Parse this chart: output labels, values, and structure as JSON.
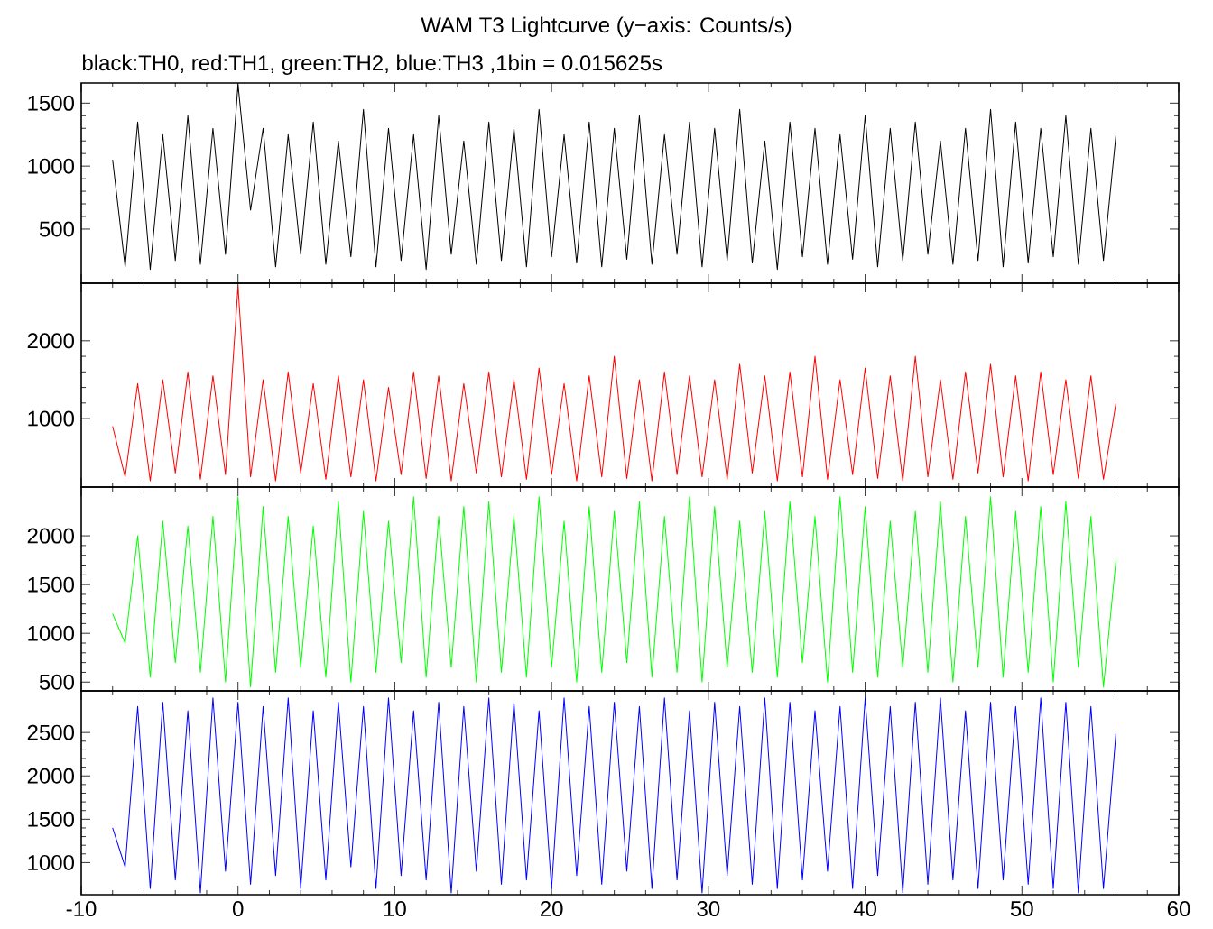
{
  "chart_data": [
    {
      "type": "line",
      "title": "WAM T3 Lightcurve (y−axis: Counts/s)",
      "subtitle": "black:TH0, red:TH1, green:TH2, blue:TH3 ,1bin = 0.015625s",
      "color": "#000000",
      "xlim": [
        -10,
        60
      ],
      "xticks": [
        -10,
        0,
        10,
        20,
        30,
        40,
        50,
        60
      ],
      "ylim": [
        70,
        1660
      ],
      "yticks": [
        500,
        1000,
        1500
      ],
      "tick_labels": "y",
      "x": [
        -8,
        -7.2,
        -6.4,
        -5.6,
        -4.8,
        -4,
        -3.2,
        -2.4,
        -1.6,
        -0.8,
        0,
        0.8,
        1.6,
        2.4,
        3.2,
        4,
        4.8,
        5.6,
        6.4,
        7.2,
        8,
        8.8,
        9.6,
        10.4,
        11.2,
        12,
        12.8,
        13.6,
        14.4,
        15.2,
        16,
        16.8,
        17.6,
        18.4,
        19.2,
        20,
        20.8,
        21.6,
        22.4,
        23.2,
        24,
        24.8,
        25.6,
        26.4,
        27.2,
        28,
        28.8,
        29.6,
        30.4,
        31.2,
        32,
        32.8,
        33.6,
        34.4,
        35.2,
        36,
        36.8,
        37.6,
        38.4,
        39.2,
        40,
        40.8,
        41.6,
        42.4,
        43.2,
        44,
        44.8,
        45.6,
        46.4,
        47.2,
        48,
        48.8,
        49.6,
        50.4,
        51.2,
        52,
        52.8,
        53.6,
        54.4,
        55.2,
        56
      ],
      "values": [
        1050,
        200,
        1350,
        180,
        1250,
        250,
        1400,
        220,
        1300,
        300,
        1650,
        650,
        1300,
        200,
        1250,
        300,
        1350,
        220,
        1200,
        280,
        1450,
        200,
        1300,
        250,
        1250,
        180,
        1400,
        300,
        1200,
        220,
        1350,
        250,
        1300,
        200,
        1450,
        280,
        1250,
        230,
        1350,
        200,
        1300,
        260,
        1400,
        220,
        1250,
        300,
        1350,
        200,
        1300,
        250,
        1450,
        230,
        1200,
        180,
        1350,
        280,
        1300,
        220,
        1250,
        260,
        1400,
        200,
        1300,
        250,
        1350,
        300,
        1200,
        220,
        1300,
        250,
        1450,
        200,
        1350,
        230,
        1300,
        280,
        1400,
        220,
        1300,
        250,
        1250
      ]
    },
    {
      "type": "line",
      "color": "#ff0000",
      "xlim": [
        -10,
        60
      ],
      "xticks": [
        -10,
        0,
        10,
        20,
        30,
        40,
        50,
        60
      ],
      "ylim": [
        120,
        2740
      ],
      "yticks": [
        1000,
        2000
      ],
      "tick_labels": "y",
      "x": [
        -8,
        -7.2,
        -6.4,
        -5.6,
        -4.8,
        -4,
        -3.2,
        -2.4,
        -1.6,
        -0.8,
        0,
        0.8,
        1.6,
        2.4,
        3.2,
        4,
        4.8,
        5.6,
        6.4,
        7.2,
        8,
        8.8,
        9.6,
        10.4,
        11.2,
        12,
        12.8,
        13.6,
        14.4,
        15.2,
        16,
        16.8,
        17.6,
        18.4,
        19.2,
        20,
        20.8,
        21.6,
        22.4,
        23.2,
        24,
        24.8,
        25.6,
        26.4,
        27.2,
        28,
        28.8,
        29.6,
        30.4,
        31.2,
        32,
        32.8,
        33.6,
        34.4,
        35.2,
        36,
        36.8,
        37.6,
        38.4,
        39.2,
        40,
        40.8,
        41.6,
        42.4,
        43.2,
        44,
        44.8,
        45.6,
        46.4,
        47.2,
        48,
        48.8,
        49.6,
        50.4,
        51.2,
        52,
        52.8,
        53.6,
        54.4,
        55.2,
        56
      ],
      "values": [
        900,
        250,
        1450,
        200,
        1500,
        300,
        1600,
        220,
        1550,
        280,
        2700,
        250,
        1500,
        200,
        1600,
        300,
        1450,
        220,
        1550,
        250,
        1500,
        200,
        1400,
        280,
        1600,
        230,
        1550,
        200,
        1450,
        300,
        1600,
        250,
        1500,
        220,
        1650,
        280,
        1450,
        200,
        1550,
        250,
        1800,
        230,
        1500,
        200,
        1600,
        280,
        1550,
        250,
        1500,
        220,
        1700,
        300,
        1550,
        200,
        1600,
        250,
        1800,
        220,
        1500,
        280,
        1650,
        230,
        1550,
        200,
        1800,
        250,
        1500,
        220,
        1600,
        300,
        1700,
        250,
        1550,
        200,
        1600,
        280,
        1500,
        230,
        1550,
        220,
        1200
      ]
    },
    {
      "type": "line",
      "color": "#00ff00",
      "xlim": [
        -10,
        60
      ],
      "xticks": [
        -10,
        0,
        10,
        20,
        30,
        40,
        50,
        60
      ],
      "ylim": [
        410,
        2500
      ],
      "yticks": [
        500,
        1000,
        1500,
        2000
      ],
      "tick_labels": "y",
      "x": [
        -8,
        -7.2,
        -6.4,
        -5.6,
        -4.8,
        -4,
        -3.2,
        -2.4,
        -1.6,
        -0.8,
        0,
        0.8,
        1.6,
        2.4,
        3.2,
        4,
        4.8,
        5.6,
        6.4,
        7.2,
        8,
        8.8,
        9.6,
        10.4,
        11.2,
        12,
        12.8,
        13.6,
        14.4,
        15.2,
        16,
        16.8,
        17.6,
        18.4,
        19.2,
        20,
        20.8,
        21.6,
        22.4,
        23.2,
        24,
        24.8,
        25.6,
        26.4,
        27.2,
        28,
        28.8,
        29.6,
        30.4,
        31.2,
        32,
        32.8,
        33.6,
        34.4,
        35.2,
        36,
        36.8,
        37.6,
        38.4,
        39.2,
        40,
        40.8,
        41.6,
        42.4,
        43.2,
        44,
        44.8,
        45.6,
        46.4,
        47.2,
        48,
        48.8,
        49.6,
        50.4,
        51.2,
        52,
        52.8,
        53.6,
        54.4,
        55.2,
        56
      ],
      "values": [
        1200,
        900,
        2000,
        550,
        2150,
        700,
        2100,
        600,
        2200,
        500,
        2400,
        450,
        2300,
        600,
        2200,
        650,
        2100,
        550,
        2350,
        500,
        2250,
        600,
        2150,
        700,
        2400,
        550,
        2200,
        650,
        2300,
        500,
        2350,
        600,
        2200,
        550,
        2400,
        650,
        2150,
        500,
        2300,
        600,
        2250,
        700,
        2350,
        550,
        2200,
        600,
        2400,
        500,
        2300,
        650,
        2150,
        600,
        2250,
        550,
        2350,
        700,
        2200,
        500,
        2400,
        600,
        2300,
        550,
        2150,
        650,
        2250,
        600,
        2350,
        500,
        2200,
        650,
        2400,
        550,
        2250,
        600,
        2300,
        500,
        2350,
        650,
        2200,
        450,
        1750
      ]
    },
    {
      "type": "line",
      "color": "#0000ff",
      "xlim": [
        -10,
        60
      ],
      "xticks": [
        -10,
        0,
        10,
        20,
        30,
        40,
        50,
        60
      ],
      "ylim": [
        630,
        2980
      ],
      "yticks": [
        1000,
        1500,
        2000,
        2500
      ],
      "x": [
        -8,
        -7.2,
        -6.4,
        -5.6,
        -4.8,
        -4,
        -3.2,
        -2.4,
        -1.6,
        -0.8,
        0,
        0.8,
        1.6,
        2.4,
        3.2,
        4,
        4.8,
        5.6,
        6.4,
        7.2,
        8,
        8.8,
        9.6,
        10.4,
        11.2,
        12,
        12.8,
        13.6,
        14.4,
        15.2,
        16,
        16.8,
        17.6,
        18.4,
        19.2,
        20,
        20.8,
        21.6,
        22.4,
        23.2,
        24,
        24.8,
        25.6,
        26.4,
        27.2,
        28,
        28.8,
        29.6,
        30.4,
        31.2,
        32,
        32.8,
        33.6,
        34.4,
        35.2,
        36,
        36.8,
        37.6,
        38.4,
        39.2,
        40,
        40.8,
        41.6,
        42.4,
        43.2,
        44,
        44.8,
        45.6,
        46.4,
        47.2,
        48,
        48.8,
        49.6,
        50.4,
        51.2,
        52,
        52.8,
        53.6,
        54.4,
        55.2,
        56
      ],
      "values": [
        1400,
        950,
        2800,
        700,
        2850,
        800,
        2750,
        650,
        2900,
        900,
        2850,
        750,
        2800,
        850,
        2900,
        700,
        2750,
        800,
        2850,
        950,
        2800,
        700,
        2900,
        850,
        2750,
        800,
        2850,
        650,
        2800,
        900,
        2900,
        750,
        2850,
        800,
        2750,
        700,
        2900,
        850,
        2800,
        750,
        2850,
        900,
        2800,
        700,
        2900,
        800,
        2750,
        650,
        2850,
        850,
        2800,
        750,
        2900,
        700,
        2850,
        800,
        2750,
        900,
        2800,
        700,
        2900,
        850,
        2800,
        650,
        2850,
        750,
        2900,
        800,
        2750,
        700,
        2850,
        800,
        2800,
        750,
        2900,
        700,
        2850,
        650,
        2800,
        700,
        2500
      ]
    }
  ]
}
